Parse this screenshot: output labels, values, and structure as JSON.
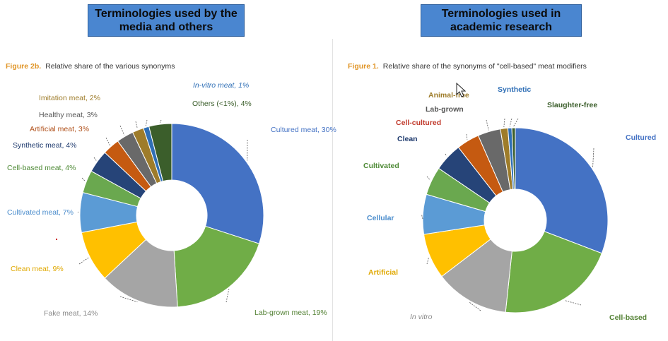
{
  "banners": {
    "left": "Terminologies used by the media and others",
    "right": "Terminologies used in academic research"
  },
  "captions": {
    "left": {
      "num": "Figure 2b.",
      "text": "Relative share of the various synonyms"
    },
    "right": {
      "num": "Figure 1.",
      "text": "Relative share of the synonyms of \"cell-based\" meat modifiers"
    }
  },
  "chart_data": [
    {
      "type": "pie",
      "title": "Relative share of the various synonyms",
      "donut": true,
      "slices": [
        {
          "label": "Cultured meat, 30%",
          "value": 30,
          "color": "#4472c4",
          "label_color": "#4472c4"
        },
        {
          "label": "Lab-grown meat, 19%",
          "value": 19,
          "color": "#70ad47",
          "label_color": "#548235"
        },
        {
          "label": "Fake meat, 14%",
          "value": 14,
          "color": "#a5a5a5",
          "label_color": "#8a8a8a"
        },
        {
          "label": "Clean meat, 9%",
          "value": 9,
          "color": "#ffc000",
          "label_color": "#e0a800"
        },
        {
          "label": "Cultivated meat, 7%",
          "value": 7,
          "color": "#5b9bd5",
          "label_color": "#4a8ccc"
        },
        {
          "label": "Cell-based meat, 4%",
          "value": 4,
          "color": "#6aa84f",
          "label_color": "#4e8a36"
        },
        {
          "label": "Synthetic meat, 4%",
          "value": 4,
          "color": "#264478",
          "label_color": "#1f3b6e"
        },
        {
          "label": "Artificial meat, 3%",
          "value": 3,
          "color": "#c55a11",
          "label_color": "#b0501a"
        },
        {
          "label": "Healthy meat, 3%",
          "value": 3,
          "color": "#696969",
          "label_color": "#555555"
        },
        {
          "label": "Imitation meat, 2%",
          "value": 2,
          "color": "#9e7c2a",
          "label_color": "#9e7c2a"
        },
        {
          "label": "In-vitro meat, 1%",
          "value": 1,
          "color": "#2f6fb6",
          "label_color": "#2f6fb6"
        },
        {
          "label": "Others (<1%), 4%",
          "value": 4,
          "color": "#3b5e2b",
          "label_color": "#3b5e2b"
        }
      ]
    },
    {
      "type": "pie",
      "title": "Relative share of the synonyms of \"cell-based\" meat modifiers",
      "donut": true,
      "slices": [
        {
          "label": "Cultured",
          "value": 31,
          "color": "#4472c4",
          "label_color": "#4472c4"
        },
        {
          "label": "Cell-based",
          "value": 21,
          "color": "#70ad47",
          "label_color": "#548235"
        },
        {
          "label": "In vitro",
          "value": 13,
          "color": "#a5a5a5",
          "label_color": "#8a8a8a"
        },
        {
          "label": "Artificial",
          "value": 8,
          "color": "#ffc000",
          "label_color": "#e0a800"
        },
        {
          "label": "Cellular",
          "value": 7,
          "color": "#5b9bd5",
          "label_color": "#4a8ccc"
        },
        {
          "label": "Cultivated",
          "value": 5,
          "color": "#6aa84f",
          "label_color": "#4e8a36"
        },
        {
          "label": "Clean",
          "value": 5,
          "color": "#264478",
          "label_color": "#1f3b6e"
        },
        {
          "label": "Cell-cultured",
          "value": 4,
          "color": "#c55a11",
          "label_color": "#c0392b"
        },
        {
          "label": "Lab-grown",
          "value": 4,
          "color": "#696969",
          "label_color": "#555555"
        },
        {
          "label": "Animal-free",
          "value": 1.3,
          "color": "#9e7c2a",
          "label_color": "#9e7c2a"
        },
        {
          "label": "Synthetic",
          "value": 0.7,
          "color": "#2f6fb6",
          "label_color": "#2f6fb6"
        },
        {
          "label": "Slaughter-free",
          "value": 0.6,
          "color": "#3b5e2b",
          "label_color": "#3b5e2b"
        }
      ]
    }
  ]
}
